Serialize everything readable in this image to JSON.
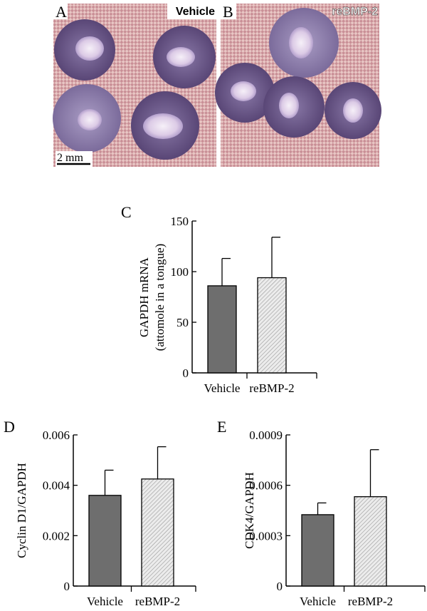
{
  "figure": {
    "panel_a": {
      "letter": "A",
      "label": "Vehicle",
      "scale_bar": "2 mm"
    },
    "panel_b": {
      "letter": "B",
      "label": "reBMP-2"
    }
  },
  "colors": {
    "vehicle_bar": "#6e6e6e",
    "rebmp_bar": "#d6d6d6",
    "mesh": "#d7a4a8",
    "disc": "#6f5a8e",
    "disc_center": "#ece4f2"
  },
  "chart_data": [
    {
      "id": "C",
      "type": "bar",
      "panel_letter": "C",
      "categories": [
        "Vehicle",
        "reBMP-2"
      ],
      "values": [
        86,
        94
      ],
      "errors": [
        27,
        40
      ],
      "ylabel_line1": "GAPDH mRNA",
      "ylabel_line2": "(attomole in a tongue)",
      "ylim": [
        0,
        150
      ],
      "yticks": [
        "0",
        "50",
        "100",
        "150"
      ],
      "ytick_values": [
        0,
        50,
        100,
        150
      ]
    },
    {
      "id": "D",
      "type": "bar",
      "panel_letter": "D",
      "categories": [
        "Vehicle",
        "reBMP-2"
      ],
      "values": [
        0.0036,
        0.00425
      ],
      "errors": [
        0.001,
        0.00128
      ],
      "ylabel_line1": "Cyclin D1/GAPDH",
      "ylim": [
        0,
        0.006
      ],
      "yticks": [
        "0",
        "0.002",
        "0.004",
        "0.006"
      ],
      "ytick_values": [
        0,
        0.002,
        0.004,
        0.006
      ]
    },
    {
      "id": "E",
      "type": "bar",
      "panel_letter": "E",
      "categories": [
        "Vehicle",
        "reBMP-2"
      ],
      "values": [
        0.000425,
        0.000532
      ],
      "errors": [
        7e-05,
        0.00028
      ],
      "ylabel_line1": "CDK4/GAPDH",
      "ylim": [
        0,
        0.0009
      ],
      "yticks": [
        "0",
        "0.0003",
        "0.0006",
        "0.0009"
      ],
      "ytick_values": [
        0,
        0.0003,
        0.0006,
        0.0009
      ]
    }
  ]
}
